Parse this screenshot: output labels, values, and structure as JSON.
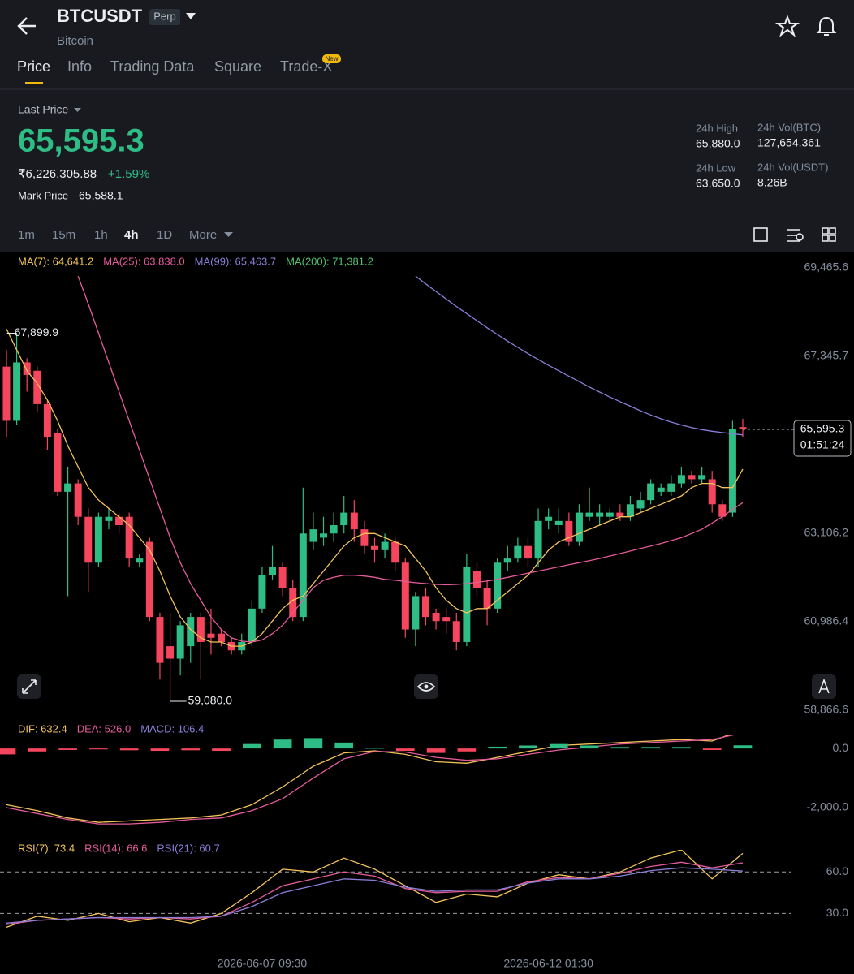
{
  "header": {
    "symbol": "BTCUSDT",
    "badge": "Perp",
    "name": "Bitcoin",
    "tabs": [
      "Price",
      "Info",
      "Trading Data",
      "Square",
      "Trade-X"
    ],
    "new_badge": "New"
  },
  "ticker": {
    "last_price_label": "Last Price",
    "last_price": "65,595.3",
    "inr_price": "₹6,226,305.88",
    "change": "+1.59%",
    "mark_price_label": "Mark Price",
    "mark_price": "65,588.1",
    "stats": [
      {
        "label": "24h High",
        "value": "65,880.0"
      },
      {
        "label": "24h Vol(BTC)",
        "value": "127,654.361"
      },
      {
        "label": "24h Low",
        "value": "63,650.0"
      },
      {
        "label": "24h Vol(USDT)",
        "value": "8.26B"
      }
    ]
  },
  "intervals": [
    "1m",
    "15m",
    "1h",
    "4h",
    "1D",
    "More"
  ],
  "chart_data": [
    {
      "type": "candlestick",
      "up_color": "#2ebd85",
      "down_color": "#f6465d",
      "categories": [
        null,
        null,
        null,
        null,
        null,
        null,
        null,
        null,
        null,
        null,
        null,
        null,
        null,
        null,
        null,
        null,
        null,
        null,
        null,
        null,
        null,
        null,
        null,
        null,
        null,
        "2026-06-07 09:30",
        null,
        null,
        null,
        null,
        null,
        null,
        null,
        null,
        null,
        null,
        null,
        null,
        null,
        null,
        null,
        null,
        null,
        null,
        null,
        null,
        null,
        null,
        null,
        null,
        null,
        null,
        null,
        "2026-06-12 01:30",
        null,
        null,
        null,
        null,
        null,
        null,
        null,
        null,
        null,
        null,
        null,
        null,
        null,
        null,
        null,
        null,
        null,
        null,
        null
      ],
      "open": [
        67100,
        65800,
        67200,
        67000,
        66200,
        65500,
        64100,
        64300,
        63500,
        62400,
        63400,
        63500,
        63500,
        62400,
        62900,
        61100,
        60400,
        60100,
        60400,
        61100,
        60700,
        60700,
        60500,
        60300,
        60500,
        61300,
        62100,
        62300,
        61800,
        61100,
        62900,
        63000,
        63100,
        63300,
        63600,
        63200,
        62800,
        62700,
        62900,
        62400,
        60800,
        61600,
        61200,
        61100,
        61000,
        60500,
        62200,
        61800,
        61300,
        62400,
        62500,
        62800,
        62500,
        63400,
        63300,
        63400,
        62900,
        63500,
        63500,
        63500,
        63600,
        63500,
        63700,
        63900,
        64100,
        64100,
        64300,
        64500,
        64400,
        64400,
        63800,
        63600,
        65650
      ],
      "high": [
        67500,
        67899.9,
        67300,
        67100,
        66300,
        65600,
        64700,
        64400,
        63700,
        63600,
        63700,
        63600,
        63600,
        62600,
        63000,
        61200,
        61200,
        61000,
        61200,
        61200,
        61300,
        60800,
        60600,
        60700,
        61500,
        62300,
        62800,
        62400,
        62000,
        64200,
        63600,
        63500,
        63600,
        64000,
        63900,
        63400,
        63000,
        63100,
        63000,
        62500,
        61700,
        61800,
        61300,
        61300,
        61200,
        62600,
        62400,
        62000,
        62500,
        62800,
        63000,
        63000,
        63700,
        63700,
        63700,
        63600,
        63800,
        64200,
        63800,
        63700,
        63800,
        64000,
        64100,
        64400,
        64300,
        64500,
        64700,
        64600,
        64700,
        64600,
        63900,
        65800,
        65850
      ],
      "low": [
        65400,
        65700,
        66500,
        66000,
        65100,
        64000,
        61600,
        63300,
        61700,
        62300,
        63200,
        63100,
        62300,
        62300,
        61000,
        59600,
        59080,
        59700,
        60000,
        59600,
        60200,
        60400,
        60200,
        60200,
        60400,
        61200,
        62000,
        61600,
        61000,
        61000,
        62700,
        62800,
        62900,
        63100,
        62900,
        62600,
        62400,
        62500,
        62200,
        60600,
        60400,
        60900,
        60800,
        60700,
        60300,
        60400,
        61600,
        60900,
        61200,
        62200,
        62400,
        62300,
        62300,
        63200,
        63100,
        62800,
        62800,
        63400,
        63300,
        63400,
        63400,
        63400,
        63600,
        63800,
        64000,
        64000,
        64200,
        64300,
        64300,
        63600,
        63400,
        63500,
        65400
      ],
      "close": [
        65800,
        67200,
        66900,
        66200,
        65400,
        64100,
        64300,
        63500,
        62400,
        63500,
        63500,
        63300,
        62500,
        62500,
        61100,
        60000,
        60100,
        60900,
        61100,
        60500,
        60600,
        60500,
        60300,
        60500,
        61300,
        62100,
        62300,
        61800,
        61100,
        63100,
        63200,
        63100,
        63300,
        63600,
        63200,
        62800,
        62700,
        62900,
        62400,
        60800,
        61600,
        61100,
        61000,
        61000,
        60500,
        62300,
        61800,
        61300,
        62400,
        62500,
        62800,
        62500,
        63400,
        63500,
        63400,
        62900,
        63600,
        63600,
        63600,
        63600,
        63500,
        63800,
        63900,
        64300,
        64200,
        64300,
        64500,
        64400,
        64500,
        63800,
        63500,
        65600,
        65595.3
      ],
      "series": [
        {
          "name": "MA(7): 64,641.2",
          "color": "#f3c35a",
          "values": [
            68000,
            67500,
            67000,
            66700,
            66300,
            65800,
            65200,
            64700,
            64200,
            63900,
            63700,
            63500,
            63300,
            63000,
            62700,
            62200,
            61600,
            61100,
            60800,
            60600,
            60500,
            60500,
            60400,
            60400,
            60500,
            60700,
            61000,
            61300,
            61500,
            61600,
            61900,
            62200,
            62500,
            62800,
            63000,
            63100,
            63100,
            63000,
            62900,
            62800,
            62500,
            62200,
            61800,
            61500,
            61300,
            61200,
            61300,
            61300,
            61500,
            61700,
            61900,
            62100,
            62400,
            62700,
            62900,
            63000,
            63100,
            63200,
            63300,
            63400,
            63500,
            63500,
            63600,
            63700,
            63800,
            63900,
            64000,
            64200,
            64300,
            64300,
            64200,
            64200,
            64641.2
          ]
        },
        {
          "name": "MA(25): 63,838.0",
          "color": "#e55b9a",
          "values": [
            null,
            null,
            null,
            null,
            null,
            null,
            null,
            69270,
            68600,
            67900,
            67200,
            66500,
            65800,
            65100,
            64400,
            63700,
            63000,
            62400,
            61900,
            61500,
            61100,
            60800,
            60600,
            60520,
            60500,
            60550,
            60700,
            60900,
            61200,
            61500,
            61800,
            61980,
            62050,
            62100,
            62100,
            62080,
            62050,
            62000,
            61980,
            61950,
            61920,
            61900,
            61880,
            61870,
            61880,
            61900,
            61930,
            61960,
            62000,
            62050,
            62100,
            62150,
            62200,
            62250,
            62300,
            62350,
            62400,
            62450,
            62500,
            62560,
            62620,
            62680,
            62740,
            62800,
            62860,
            62930,
            63000,
            63100,
            63200,
            63350,
            63500,
            63680,
            63838
          ]
        },
        {
          "name": "MA(99): 65,463.7",
          "color": "#8a7fd8",
          "values": [
            null,
            null,
            null,
            null,
            null,
            null,
            null,
            null,
            null,
            null,
            null,
            null,
            null,
            null,
            null,
            null,
            null,
            null,
            null,
            null,
            null,
            null,
            null,
            null,
            null,
            null,
            null,
            null,
            null,
            null,
            null,
            null,
            null,
            null,
            null,
            null,
            null,
            null,
            null,
            null,
            69270,
            69080,
            68900,
            68720,
            68540,
            68370,
            68200,
            68030,
            67870,
            67710,
            67560,
            67410,
            67270,
            67130,
            67000,
            66870,
            66740,
            66610,
            66490,
            66370,
            66260,
            66150,
            66040,
            65940,
            65850,
            65770,
            65700,
            65640,
            65590,
            65550,
            65520,
            65490,
            65463.7
          ]
        },
        {
          "name": "MA(200): 71,381.2",
          "color": "#4fc36f",
          "values": [
            null,
            null,
            null,
            null,
            null,
            null,
            null,
            null,
            null,
            null,
            null,
            null,
            null,
            null,
            null,
            null,
            null,
            null,
            null,
            null,
            null,
            null,
            null,
            null,
            null,
            null,
            null,
            null,
            null,
            null,
            null,
            null,
            null,
            null,
            null,
            null,
            null,
            null,
            null,
            null,
            null,
            null,
            null,
            null,
            null,
            null,
            null,
            null,
            null,
            null,
            null,
            null,
            null,
            null,
            null,
            null,
            null,
            null,
            null,
            null,
            null,
            null,
            null,
            null,
            null,
            null,
            null,
            null,
            null,
            null,
            null,
            null,
            null
          ]
        }
      ],
      "ylim": [
        58573.6,
        69815.7
      ],
      "yticks": [
        {
          "value": 69465.6,
          "label": "69,465.6"
        },
        {
          "value": 67345.7,
          "label": "67,345.7"
        },
        {
          "value": 63106.2,
          "label": "63,106.2"
        },
        {
          "value": 60986.4,
          "label": "60,986.4"
        },
        {
          "value": 58866.6,
          "label": "58,866.6"
        }
      ],
      "grid": false,
      "high_label": {
        "value": 67899.9,
        "label": "67,899.9"
      },
      "low_label": {
        "value": 59080,
        "label": "59,080.0"
      },
      "last_price_tag": {
        "value": 65595.3,
        "label": "65,595.3",
        "countdown": "01:51:24"
      }
    },
    {
      "type": "macd",
      "up_color": "#2ebd85",
      "down_color": "#f6465d",
      "categories": [
        null,
        null,
        null,
        null,
        null,
        null,
        null,
        null,
        null,
        null,
        null,
        null,
        null,
        null,
        null,
        null,
        null,
        null,
        null,
        null,
        null,
        null,
        null,
        null,
        null
      ],
      "series": [
        {
          "name": "DIF: 632.4",
          "color": "#f3c35a",
          "type": "line",
          "values": [
            -1900,
            -2100,
            -2350,
            -2500,
            -2450,
            -2400,
            -2350,
            -2250,
            -1900,
            -1300,
            -600,
            -150,
            -80,
            -200,
            -450,
            -500,
            -300,
            -100,
            100,
            150,
            200,
            250,
            300,
            250,
            632.4
          ]
        },
        {
          "name": "DEA: 526.0",
          "color": "#e55b9a",
          "type": "line",
          "values": [
            -2000,
            -2200,
            -2400,
            -2550,
            -2550,
            -2500,
            -2400,
            -2350,
            -2100,
            -1700,
            -1000,
            -350,
            -100,
            -120,
            -300,
            -400,
            -350,
            -200,
            -50,
            50,
            150,
            200,
            250,
            300,
            526
          ]
        },
        {
          "name": "MACD: 106.4",
          "color": "#8a7fd8",
          "type": "bar",
          "values": [
            -200,
            -100,
            -50,
            -30,
            -60,
            -80,
            -60,
            -80,
            150,
            300,
            350,
            200,
            20,
            -80,
            -150,
            -100,
            60,
            100,
            150,
            100,
            50,
            50,
            50,
            -50,
            106.4
          ]
        }
      ],
      "ylim": [
        -2960,
        470
      ],
      "yticks": [
        {
          "value": 0,
          "label": "0.0"
        },
        {
          "value": -2000,
          "label": "-2,000.0"
        }
      ],
      "grid": false
    },
    {
      "type": "rsi",
      "categories": [
        null,
        null,
        null,
        null,
        null,
        null,
        null,
        null,
        null,
        null,
        null,
        null,
        null,
        null,
        null,
        null,
        null,
        null,
        null,
        null,
        null,
        null,
        null,
        null,
        null
      ],
      "series": [
        {
          "name": "RSI(7): 73.4",
          "color": "#f3c35a",
          "values": [
            20,
            28,
            25,
            30,
            24,
            27,
            23,
            30,
            45,
            62,
            60,
            70,
            62,
            50,
            38,
            44,
            42,
            52,
            58,
            55,
            60,
            70,
            76,
            55,
            73.4
          ]
        },
        {
          "name": "RSI(14): 66.6",
          "color": "#e55b9a",
          "values": [
            22,
            25,
            26,
            27,
            26,
            27,
            26,
            28,
            38,
            50,
            55,
            60,
            57,
            48,
            45,
            46,
            46,
            53,
            56,
            55,
            59,
            64,
            67,
            63,
            66.6
          ]
        },
        {
          "name": "RSI(21): 60.7",
          "color": "#8a7fd8",
          "values": [
            23,
            25,
            26,
            27,
            27,
            27,
            27,
            28,
            35,
            45,
            50,
            55,
            54,
            49,
            46,
            47,
            47,
            52,
            55,
            55,
            57,
            61,
            63,
            62,
            60.7
          ]
        }
      ],
      "ylim": [
        5,
        76
      ],
      "yticks": [
        {
          "value": 60,
          "label": "60.0"
        },
        {
          "value": 30,
          "label": "30.0"
        }
      ],
      "grid": true
    }
  ]
}
